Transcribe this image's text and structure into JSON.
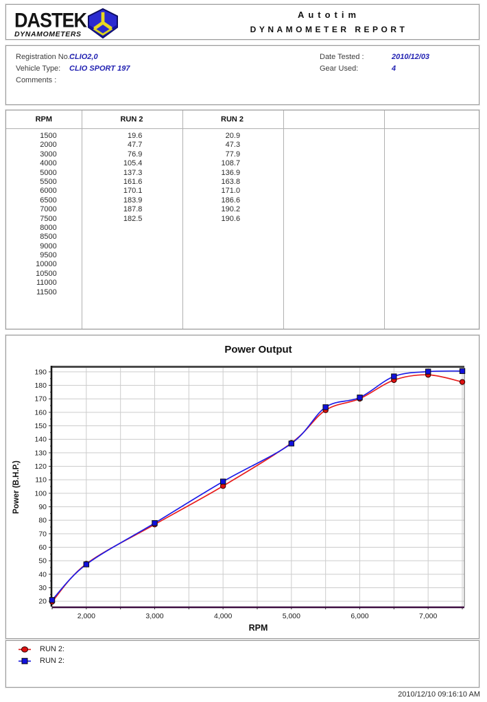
{
  "header": {
    "logo_text": "DASTEK",
    "logo_subtext": "DYNAMOMETERS",
    "report_name": "Autotim",
    "report_type": "DYNAMOMETER REPORT"
  },
  "info": {
    "registration_label": "Registration No. :",
    "registration_value": "CLIO2,0",
    "vehicle_label": "Vehicle Type:",
    "vehicle_value": "CLIO SPORT 197",
    "comments_label": "Comments :",
    "comments_value": "",
    "date_label": "Date Tested :",
    "date_value": "2010/12/03",
    "gear_label": "Gear Used:",
    "gear_value": "4",
    "accent_color": "#2222b2"
  },
  "table": {
    "columns": [
      "RPM",
      "RUN 2",
      "RUN 2",
      "",
      ""
    ],
    "rows": [
      [
        "1500",
        "19.6",
        "20.9",
        "",
        ""
      ],
      [
        "2000",
        "47.7",
        "47.3",
        "",
        ""
      ],
      [
        "3000",
        "76.9",
        "77.9",
        "",
        ""
      ],
      [
        "4000",
        "105.4",
        "108.7",
        "",
        ""
      ],
      [
        "5000",
        "137.3",
        "136.9",
        "",
        ""
      ],
      [
        "5500",
        "161.6",
        "163.8",
        "",
        ""
      ],
      [
        "6000",
        "170.1",
        "171.0",
        "",
        ""
      ],
      [
        "6500",
        "183.9",
        "186.6",
        "",
        ""
      ],
      [
        "7000",
        "187.8",
        "190.2",
        "",
        ""
      ],
      [
        "7500",
        "182.5",
        "190.6",
        "",
        ""
      ],
      [
        "8000",
        "",
        "",
        "",
        ""
      ],
      [
        "8500",
        "",
        "",
        "",
        ""
      ],
      [
        "9000",
        "",
        "",
        "",
        ""
      ],
      [
        "9500",
        "",
        "",
        "",
        ""
      ],
      [
        "10000",
        "",
        "",
        "",
        ""
      ],
      [
        "10500",
        "",
        "",
        "",
        ""
      ],
      [
        "11000",
        "",
        "",
        "",
        ""
      ],
      [
        "11500",
        "",
        "",
        "",
        ""
      ]
    ]
  },
  "chart_data": {
    "type": "line",
    "title": "Power Output",
    "xlabel": "RPM",
    "ylabel": "Power (B.H.P.)",
    "xlim": [
      1500,
      7530
    ],
    "ylim": [
      16,
      193
    ],
    "x_tick_values": [
      2000,
      3000,
      4000,
      5000,
      6000,
      7000
    ],
    "x_tick_labels": [
      "2,000",
      "3,000",
      "4,000",
      "5,000",
      "6,000",
      "7,000"
    ],
    "x_minor_step": 500,
    "y_tick_min": 20,
    "y_tick_max": 190,
    "y_tick_step": 10,
    "y_minor_step": 5,
    "grid": true,
    "grid_color": "#cccccc",
    "baseline_color": "#3d0d40",
    "legend_position": "bottom-left",
    "series": [
      {
        "name": "RUN 2:",
        "marker": "circle",
        "color": "#e81c1c",
        "marker_fill": "#dd1111",
        "x": [
          1500,
          2000,
          3000,
          4000,
          5000,
          5500,
          6000,
          6500,
          7000,
          7500
        ],
        "values": [
          19.6,
          47.7,
          76.9,
          105.4,
          137.3,
          161.6,
          170.1,
          183.9,
          187.8,
          182.5
        ]
      },
      {
        "name": "RUN 2:",
        "marker": "square",
        "color": "#1c1ce8",
        "marker_fill": "#1111dd",
        "x": [
          1500,
          2000,
          3000,
          4000,
          5000,
          5500,
          6000,
          6500,
          7000,
          7500
        ],
        "values": [
          20.9,
          47.3,
          77.9,
          108.7,
          136.9,
          163.8,
          171.0,
          186.6,
          190.2,
          190.6
        ]
      }
    ]
  },
  "legend": {
    "items": [
      {
        "label": "RUN 2:",
        "marker": "circle-marker",
        "color": "#dd1111"
      },
      {
        "label": "RUN 2:",
        "marker": "square-marker",
        "color": "#1111dd"
      }
    ]
  },
  "footer": {
    "timestamp": "2010/12/10 09:16:10 AM"
  }
}
